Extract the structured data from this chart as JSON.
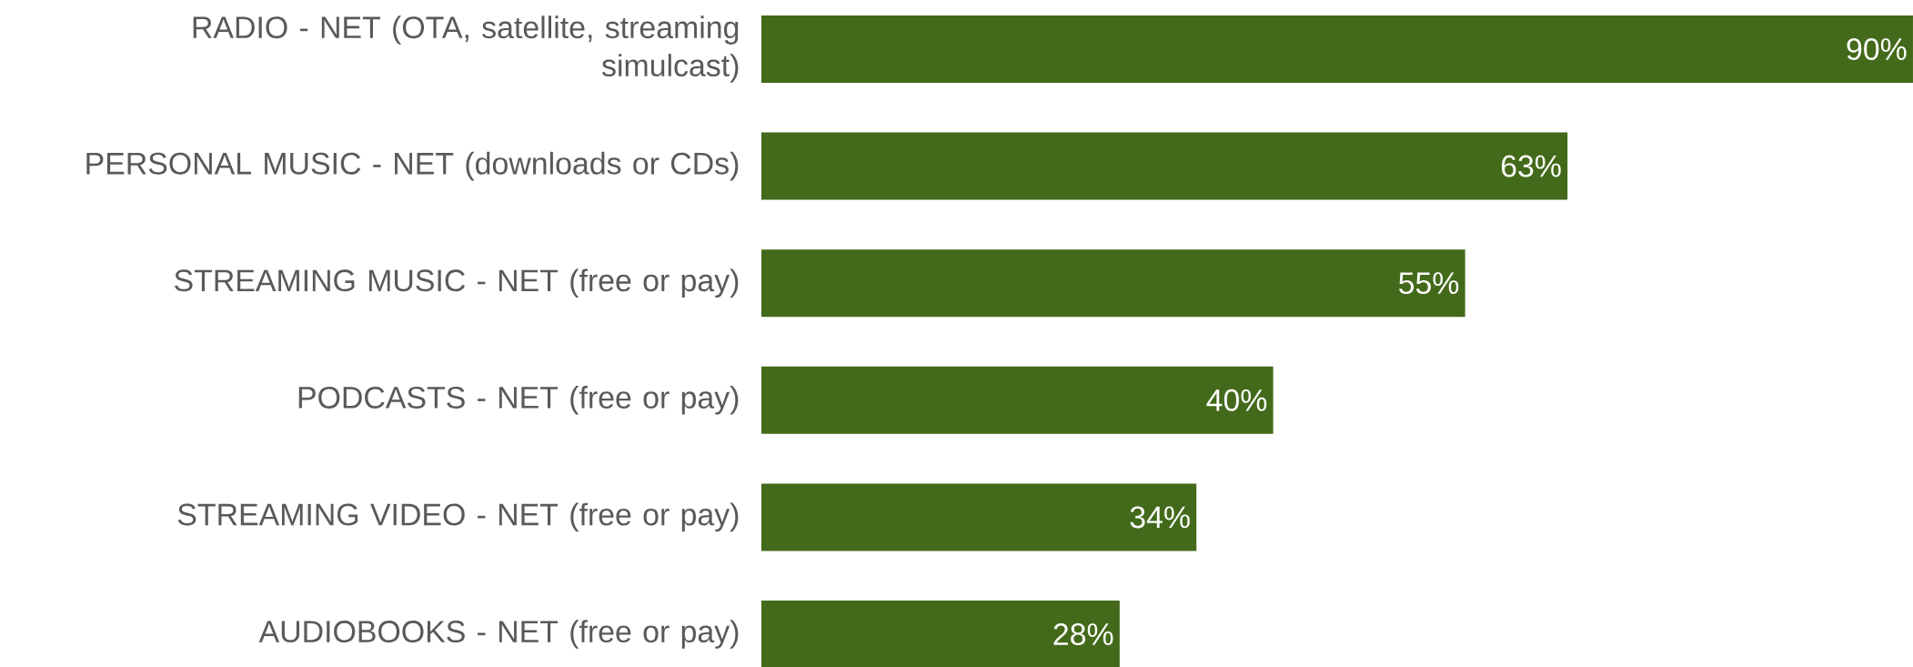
{
  "chart_data": {
    "type": "bar",
    "orientation": "horizontal",
    "categories": [
      "RADIO - NET (OTA, satellite, streaming simulcast)",
      "PERSONAL MUSIC - NET (downloads or CDs)",
      "STREAMING MUSIC - NET (free or pay)",
      "PODCASTS - NET (free or pay)",
      "STREAMING VIDEO - NET (free or pay)",
      "AUDIOBOOKS - NET (free or pay)"
    ],
    "values": [
      90,
      63,
      55,
      40,
      34,
      28
    ],
    "value_labels": [
      "90%",
      "63%",
      "55%",
      "40%",
      "34%",
      "28%"
    ],
    "color": "#436a1a"
  }
}
